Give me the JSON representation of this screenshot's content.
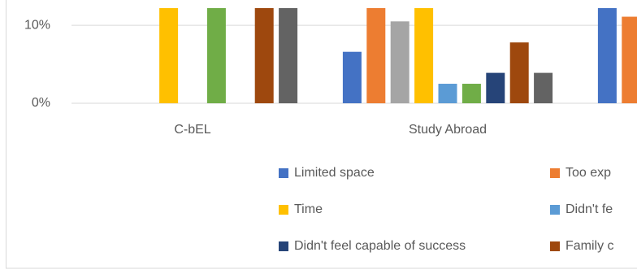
{
  "chart_data": {
    "type": "bar",
    "categories": [
      "C-bEL",
      "Study Abroad",
      null
    ],
    "series": [
      {
        "name": "Limited space",
        "color": "#4472c4",
        "values": [
          0,
          6.6,
          12.2
        ]
      },
      {
        "name": "Too exp",
        "color": "#ed7d31",
        "values": [
          0,
          12.2,
          11.1
        ]
      },
      {
        "name": null,
        "color": "#a5a5a5",
        "values": [
          0,
          10.5,
          null
        ]
      },
      {
        "name": "Time",
        "color": "#ffc000",
        "values": [
          12.2,
          12.2,
          null
        ]
      },
      {
        "name": "Didn't fe",
        "color": "#5b9bd5",
        "values": [
          0,
          2.5,
          null
        ]
      },
      {
        "name": null,
        "color": "#70ad47",
        "values": [
          12.2,
          2.5,
          null
        ]
      },
      {
        "name": "Didn't feel capable of success",
        "color": "#264478",
        "values": [
          0,
          3.9,
          null
        ]
      },
      {
        "name": "Family c",
        "color": "#9e480e",
        "values": [
          12.2,
          7.8,
          null
        ]
      },
      {
        "name": null,
        "color": "#636363",
        "values": [
          12.2,
          3.9,
          null
        ]
      }
    ],
    "ylim": [
      0,
      12.2
    ],
    "yticks": [
      {
        "value": 0,
        "label": "0%"
      },
      {
        "value": 10,
        "label": "10%"
      }
    ],
    "grid": true
  }
}
